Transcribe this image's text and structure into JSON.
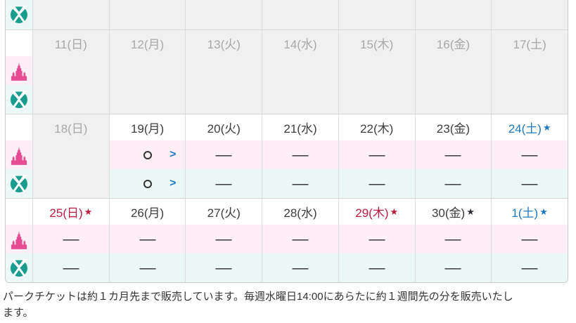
{
  "symbols": {
    "dash": "—",
    "star": "★",
    "chevron": ">"
  },
  "colors": {
    "land_accent": "#e64c92",
    "sea_accent": "#189d8f",
    "land_row_bg": "#fdeff5",
    "sea_row_bg": "#ebf8f5",
    "disabled_bg": "#f0f0f0",
    "disabled_text": "#a8a8a8",
    "default_text": "#3d3d3d",
    "holiday_red": "#b91d3d",
    "saturday_blue": "#1e78bf",
    "link_blue": "#1b79c0"
  },
  "legend": {
    "land": "tokyo-disneyland-castle",
    "sea": "tokyo-disneysea-globe"
  },
  "weeks": [
    {
      "partial": true,
      "sea": [
        "disabled",
        "disabled",
        "disabled",
        "disabled",
        "disabled",
        "disabled",
        "disabled"
      ]
    },
    {
      "days": [
        {
          "text": "11(日)",
          "style": "disabled"
        },
        {
          "text": "12(月)",
          "style": "disabled"
        },
        {
          "text": "13(火)",
          "style": "disabled"
        },
        {
          "text": "14(水)",
          "style": "disabled"
        },
        {
          "text": "15(木)",
          "style": "disabled"
        },
        {
          "text": "16(金)",
          "style": "disabled"
        },
        {
          "text": "17(土)",
          "style": "disabled"
        }
      ],
      "land": [
        "disabled",
        "disabled",
        "disabled",
        "disabled",
        "disabled",
        "disabled",
        "disabled"
      ],
      "sea": [
        "disabled",
        "disabled",
        "disabled",
        "disabled",
        "disabled",
        "disabled",
        "disabled"
      ]
    },
    {
      "days": [
        {
          "text": "18(日)",
          "style": "disabled"
        },
        {
          "text": "19(月)",
          "style": "normal"
        },
        {
          "text": "20(火)",
          "style": "normal"
        },
        {
          "text": "21(水)",
          "style": "normal"
        },
        {
          "text": "22(木)",
          "style": "normal"
        },
        {
          "text": "23(金)",
          "style": "normal"
        },
        {
          "text": "24(土)",
          "style": "saturday",
          "star": "saturday"
        }
      ],
      "land": [
        "disabled",
        "available",
        "dash",
        "dash",
        "dash",
        "dash",
        "dash"
      ],
      "sea": [
        "disabled",
        "available",
        "dash",
        "dash",
        "dash",
        "dash",
        "dash"
      ]
    },
    {
      "days": [
        {
          "text": "25(日)",
          "style": "holiday",
          "star": "holiday"
        },
        {
          "text": "26(月)",
          "style": "normal"
        },
        {
          "text": "27(火)",
          "style": "normal"
        },
        {
          "text": "28(水)",
          "style": "normal"
        },
        {
          "text": "29(木)",
          "style": "holiday",
          "star": "holiday"
        },
        {
          "text": "30(金)",
          "style": "normal",
          "star": "dark"
        },
        {
          "text": "1(土)",
          "style": "saturday",
          "star": "saturday"
        }
      ],
      "land": [
        "dash",
        "dash",
        "dash",
        "dash",
        "dash",
        "dash",
        "dash"
      ],
      "sea": [
        "dash",
        "dash",
        "dash",
        "dash",
        "dash",
        "dash",
        "dash"
      ]
    }
  ],
  "footer": {
    "line1": "パークチケットは約１カ月先まで販売しています。毎週水曜日14:00にあらたに約１週間先の分を販売いたし",
    "line2": "ます。"
  }
}
